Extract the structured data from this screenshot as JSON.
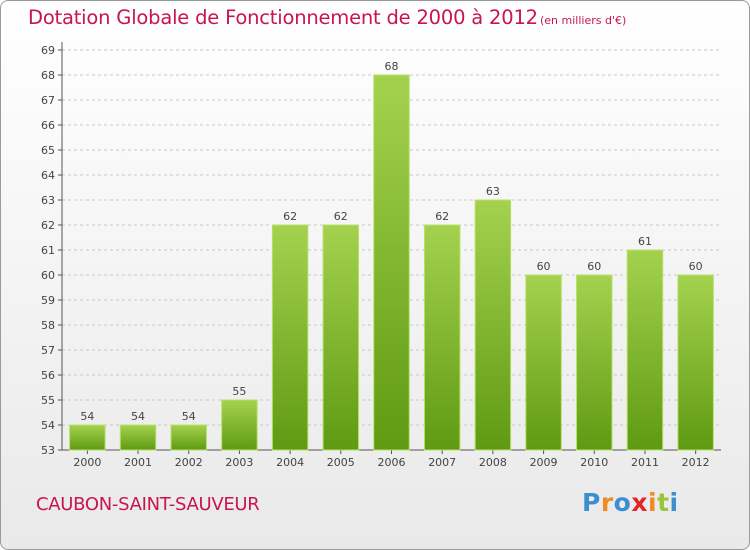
{
  "title": "Dotation Globale de Fonctionnement de 2000 à 2012",
  "unit": "(en milliers d'€)",
  "commune": "CAUBON-SAINT-SAUVEUR",
  "logo": {
    "letters": [
      "P",
      "r",
      "o",
      "x",
      "i",
      "t",
      "i"
    ],
    "colors": [
      "#3a8fd1",
      "#f08a24",
      "#3a8fd1",
      "#e1252b",
      "#f08a24",
      "#9ac53c",
      "#3a8fd1"
    ]
  },
  "colors": {
    "title": "#c8154d",
    "bar_top": "#a4d24f",
    "bar_bottom": "#5f9a12",
    "grid": "#c8c8c8"
  },
  "chart_data": {
    "type": "bar",
    "title": "Dotation Globale de Fonctionnement de 2000 à 2012",
    "subtitle": "(en milliers d'€)",
    "categories": [
      "2000",
      "2001",
      "2002",
      "2003",
      "2004",
      "2005",
      "2006",
      "2007",
      "2008",
      "2009",
      "2010",
      "2011",
      "2012"
    ],
    "values": [
      54,
      54,
      54,
      55,
      62,
      62,
      68,
      62,
      63,
      60,
      60,
      61,
      60
    ],
    "ylim": [
      53,
      69
    ],
    "yticks": [
      53,
      54,
      55,
      56,
      57,
      58,
      59,
      60,
      61,
      62,
      63,
      64,
      65,
      66,
      67,
      68,
      69
    ],
    "grid": true,
    "data_labels": true
  }
}
